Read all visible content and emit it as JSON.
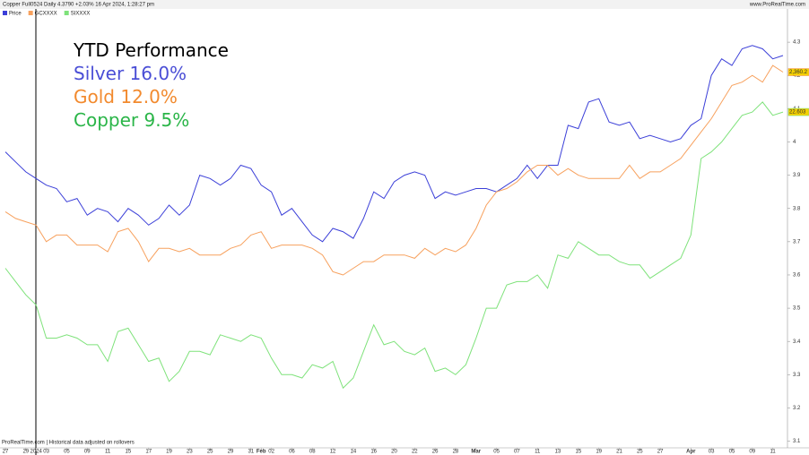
{
  "header": {
    "title": "Copper Full0524 Daily 4.3790 +2.03% 16 Apr 2024, 1:28:27 pm",
    "site": "www.ProRealTime.com"
  },
  "footer": "ProRealTime.com | Historical data adjusted on rollovers",
  "chart_data": {
    "type": "line",
    "annotations": [
      {
        "text": "YTD Performance",
        "color": "#000000"
      },
      {
        "text": "Silver 16.0%",
        "color": "#4a4ed6"
      },
      {
        "text": "Gold 12.0%",
        "color": "#f28a2e"
      },
      {
        "text": "Copper 9.5%",
        "color": "#2ab548"
      }
    ],
    "categories": [
      "27",
      null,
      "29",
      "2024",
      "03",
      null,
      "05",
      null,
      "09",
      null,
      "11",
      null,
      "15",
      null,
      "17",
      null,
      "19",
      null,
      "23",
      null,
      "25",
      null,
      "29",
      null,
      "31",
      "Feb",
      "02",
      null,
      "06",
      null,
      "08",
      null,
      "12",
      null,
      "14",
      null,
      "16",
      null,
      "20",
      null,
      "22",
      null,
      "26",
      null,
      "28",
      null,
      "Mar",
      null,
      "05",
      null,
      "07",
      null,
      "11",
      null,
      "13",
      null,
      "15",
      null,
      "19",
      null,
      "21",
      null,
      "25",
      null,
      "27",
      null,
      null,
      "Apr",
      null,
      "03",
      null,
      "05",
      null,
      "09",
      null,
      "11",
      null
    ],
    "series": [
      {
        "name": "Price",
        "color": "#3b3fd8",
        "values": [
          3.97,
          3.94,
          3.91,
          3.89,
          3.87,
          3.86,
          3.82,
          3.83,
          3.78,
          3.8,
          3.79,
          3.76,
          3.8,
          3.78,
          3.75,
          3.77,
          3.81,
          3.78,
          3.81,
          3.9,
          3.89,
          3.87,
          3.89,
          3.93,
          3.92,
          3.87,
          3.85,
          3.78,
          3.8,
          3.76,
          3.72,
          3.7,
          3.74,
          3.73,
          3.71,
          3.77,
          3.85,
          3.83,
          3.88,
          3.9,
          3.91,
          3.9,
          3.83,
          3.85,
          3.84,
          3.85,
          3.86,
          3.86,
          3.85,
          3.87,
          3.89,
          3.93,
          3.89,
          3.93,
          3.93,
          4.05,
          4.04,
          4.12,
          4.13,
          4.06,
          4.05,
          4.06,
          4.01,
          4.02,
          4.01,
          4.0,
          4.01,
          4.05,
          4.07,
          4.2,
          4.25,
          4.23,
          4.28,
          4.29,
          4.28,
          4.25,
          4.26
        ]
      },
      {
        "name": "GCXXXX",
        "color": "#f7a15e",
        "tag": "2,360.2",
        "tag_color": "#f5d000",
        "values": [
          3.79,
          3.77,
          3.76,
          3.75,
          3.7,
          3.72,
          3.72,
          3.69,
          3.69,
          3.69,
          3.67,
          3.73,
          3.74,
          3.7,
          3.64,
          3.68,
          3.68,
          3.67,
          3.68,
          3.66,
          3.66,
          3.66,
          3.68,
          3.69,
          3.72,
          3.73,
          3.68,
          3.69,
          3.69,
          3.69,
          3.68,
          3.66,
          3.61,
          3.6,
          3.62,
          3.64,
          3.64,
          3.66,
          3.66,
          3.66,
          3.65,
          3.68,
          3.66,
          3.68,
          3.67,
          3.69,
          3.74,
          3.81,
          3.85,
          3.86,
          3.88,
          3.91,
          3.93,
          3.93,
          3.9,
          3.92,
          3.9,
          3.89,
          3.89,
          3.89,
          3.89,
          3.93,
          3.89,
          3.91,
          3.91,
          3.93,
          3.95,
          3.99,
          4.03,
          4.07,
          4.12,
          4.17,
          4.18,
          4.2,
          4.18,
          4.23,
          4.21
        ]
      },
      {
        "name": "SIXXXX",
        "color": "#7ee27a",
        "tag": "22.603",
        "tag_color": "#f5d000",
        "values": [
          3.62,
          3.58,
          3.54,
          3.51,
          3.41,
          3.41,
          3.42,
          3.41,
          3.39,
          3.39,
          3.34,
          3.43,
          3.44,
          3.39,
          3.34,
          3.35,
          3.28,
          3.31,
          3.37,
          3.37,
          3.36,
          3.42,
          3.41,
          3.4,
          3.42,
          3.41,
          3.35,
          3.3,
          3.3,
          3.29,
          3.33,
          3.32,
          3.34,
          3.26,
          3.29,
          3.37,
          3.45,
          3.39,
          3.4,
          3.37,
          3.36,
          3.38,
          3.31,
          3.32,
          3.3,
          3.33,
          3.41,
          3.5,
          3.5,
          3.57,
          3.58,
          3.58,
          3.6,
          3.56,
          3.66,
          3.65,
          3.7,
          3.68,
          3.66,
          3.66,
          3.64,
          3.63,
          3.63,
          3.59,
          3.61,
          3.63,
          3.65,
          3.72,
          3.95,
          3.97,
          4.0,
          4.04,
          4.08,
          4.09,
          4.12,
          4.08,
          4.09
        ]
      }
    ],
    "ylim": [
      3.08,
      4.4
    ],
    "yticks": [
      3.1,
      3.2,
      3.3,
      3.4,
      3.5,
      3.6,
      3.7,
      3.8,
      3.9,
      4,
      4.1,
      4.2,
      4.3
    ]
  }
}
